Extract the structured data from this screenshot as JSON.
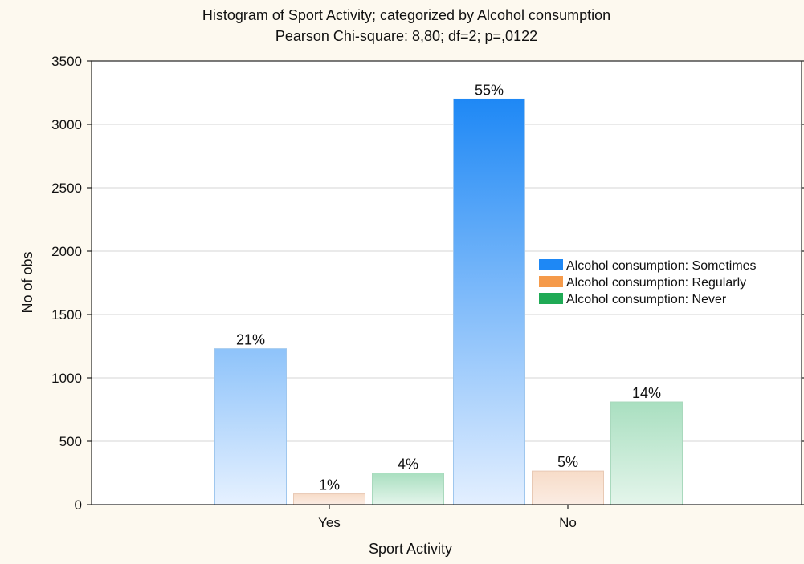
{
  "chart_data": {
    "type": "bar",
    "title": "Histogram of Sport Activity; categorized by Alcohol consumption",
    "subtitle": "Pearson Chi-square: 8,80; df=2; p=,0122",
    "xlabel": "Sport Activity",
    "ylabel": "No of obs",
    "categories": [
      "Yes",
      "No"
    ],
    "ylim": [
      0,
      3500
    ],
    "yticks": [
      0,
      500,
      1000,
      1500,
      2000,
      2500,
      3000,
      3500
    ],
    "grid": true,
    "legend_position": "right",
    "series": [
      {
        "name": "Alcohol consumption: Sometimes",
        "color": "#1e88f5",
        "values": [
          1230,
          3200
        ],
        "labels": [
          "21%",
          "55%"
        ]
      },
      {
        "name": "Alcohol consumption: Regularly",
        "color": "#f59a4a",
        "values": [
          85,
          265
        ],
        "labels": [
          "1%",
          "5%"
        ]
      },
      {
        "name": "Alcohol consumption: Never",
        "color": "#1faa55",
        "values": [
          250,
          810
        ],
        "labels": [
          "4%",
          "14%"
        ]
      }
    ]
  }
}
